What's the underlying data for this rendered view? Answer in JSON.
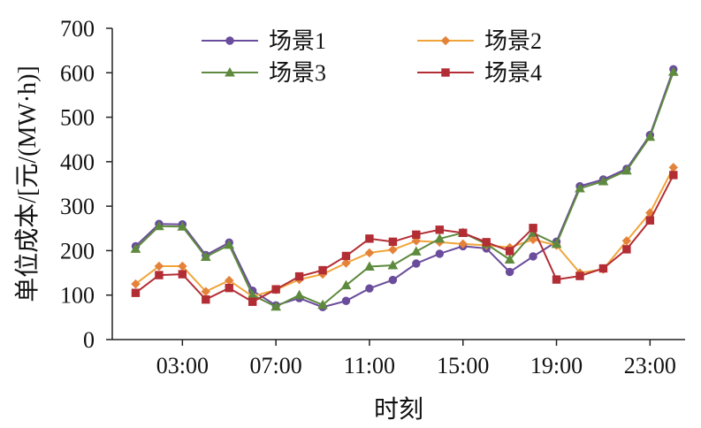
{
  "chart_data": {
    "type": "line",
    "title": "",
    "xlabel": "时刻",
    "ylabel": "单位成本/[元/(MW·h)]",
    "ylim": [
      0,
      700
    ],
    "y_ticks": [
      "0",
      "100",
      "200",
      "300",
      "400",
      "500",
      "600",
      "700"
    ],
    "x_ticks": [
      {
        "hour": 3,
        "label": "03:00"
      },
      {
        "hour": 7,
        "label": "07:00"
      },
      {
        "hour": 11,
        "label": "11:00"
      },
      {
        "hour": 15,
        "label": "15:00"
      },
      {
        "hour": 19,
        "label": "19:00"
      },
      {
        "hour": 23,
        "label": "23:00"
      }
    ],
    "x": [
      1,
      2,
      3,
      4,
      5,
      6,
      7,
      8,
      9,
      10,
      11,
      12,
      13,
      14,
      15,
      16,
      17,
      18,
      19,
      20,
      21,
      22,
      23,
      24
    ],
    "grid": false,
    "legend": {
      "position": "top",
      "columns": 2
    },
    "series": [
      {
        "name": "场景1",
        "color": "#6a4c9c",
        "marker": "circle",
        "values": [
          210,
          260,
          259,
          190,
          218,
          110,
          77,
          93,
          73,
          87,
          115,
          134,
          171,
          193,
          210,
          205,
          152,
          187,
          220,
          345,
          360,
          384,
          460,
          608
        ]
      },
      {
        "name": "场景2",
        "color": "#f0a53a",
        "marker": "diamond",
        "marker_color": "#e4823a",
        "values": [
          125,
          165,
          165,
          108,
          133,
          97,
          112,
          135,
          147,
          172,
          195,
          202,
          222,
          219,
          215,
          212,
          207,
          225,
          212,
          150,
          158,
          222,
          285,
          387
        ]
      },
      {
        "name": "场景3",
        "color": "#5e8a3e",
        "marker": "triangle",
        "values": [
          204,
          255,
          254,
          186,
          213,
          100,
          74,
          100,
          78,
          122,
          164,
          167,
          198,
          227,
          240,
          215,
          180,
          240,
          215,
          340,
          356,
          380,
          456,
          602
        ]
      },
      {
        "name": "场景4",
        "color": "#b32d35",
        "marker": "square",
        "values": [
          105,
          145,
          147,
          90,
          116,
          85,
          113,
          142,
          156,
          188,
          227,
          220,
          236,
          247,
          240,
          219,
          199,
          251,
          135,
          143,
          160,
          203,
          268,
          370
        ]
      }
    ]
  }
}
